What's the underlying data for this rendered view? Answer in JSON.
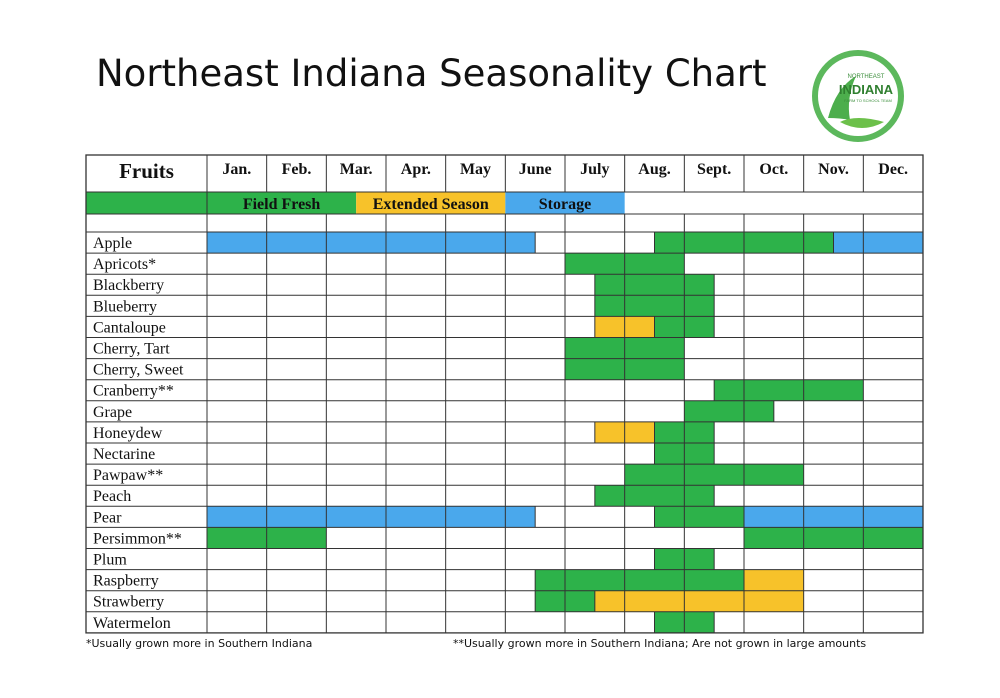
{
  "title": "Northeast Indiana Seasonality Chart",
  "logo": {
    "line1": "NORTHEAST",
    "line2": "INDIANA",
    "line3": "FARM TO SCHOOL TEAM"
  },
  "footnotes": {
    "single": "*Usually grown more in Southern Indiana",
    "double": "**Usually grown more in Southern Indiana; Are not grown in large amounts"
  },
  "colors": {
    "storage": "#4aa8ec",
    "field": "#2db24a",
    "extended": "#f7c22a",
    "grid": "#333333"
  },
  "chart_data": {
    "type": "table",
    "first_header": "Fruits",
    "months": [
      "Jan.",
      "Feb.",
      "Mar.",
      "Apr.",
      "May",
      "June",
      "July",
      "Aug.",
      "Sept.",
      "Oct.",
      "Nov.",
      "Dec."
    ],
    "legend": [
      {
        "label": "Field Fresh",
        "key": "field",
        "start": 0,
        "end": 5
      },
      {
        "label": "Extended Season",
        "key": "extended",
        "start": 5,
        "end": 10
      },
      {
        "label": "Storage",
        "key": "storage",
        "start": 10,
        "end": 14
      }
    ],
    "half_month_unit": "Each month is split into halves; spans use half-month indices 0-24 (0 = start of Jan., 24 = end of Dec.)",
    "fruits": [
      {
        "name": "Apple",
        "spans": [
          {
            "type": "storage",
            "start": 0,
            "end": 11
          },
          {
            "type": "field",
            "start": 15,
            "end": 21
          },
          {
            "type": "storage",
            "start": 21,
            "end": 24
          }
        ]
      },
      {
        "name": "Apricots*",
        "spans": [
          {
            "type": "field",
            "start": 12,
            "end": 16
          }
        ]
      },
      {
        "name": "Blackberry",
        "spans": [
          {
            "type": "field",
            "start": 13,
            "end": 17
          }
        ]
      },
      {
        "name": "Blueberry",
        "spans": [
          {
            "type": "field",
            "start": 13,
            "end": 17
          }
        ]
      },
      {
        "name": "Cantaloupe",
        "spans": [
          {
            "type": "extended",
            "start": 13,
            "end": 15
          },
          {
            "type": "field",
            "start": 15,
            "end": 17
          }
        ]
      },
      {
        "name": "Cherry, Tart",
        "spans": [
          {
            "type": "field",
            "start": 12,
            "end": 16
          }
        ]
      },
      {
        "name": "Cherry, Sweet",
        "spans": [
          {
            "type": "field",
            "start": 12,
            "end": 16
          }
        ]
      },
      {
        "name": "Cranberry**",
        "spans": [
          {
            "type": "field",
            "start": 17,
            "end": 22
          }
        ]
      },
      {
        "name": "Grape",
        "spans": [
          {
            "type": "field",
            "start": 16,
            "end": 19
          }
        ]
      },
      {
        "name": "Honeydew",
        "spans": [
          {
            "type": "extended",
            "start": 13,
            "end": 15
          },
          {
            "type": "field",
            "start": 15,
            "end": 17
          }
        ]
      },
      {
        "name": "Nectarine",
        "spans": [
          {
            "type": "field",
            "start": 15,
            "end": 17
          }
        ]
      },
      {
        "name": "Pawpaw**",
        "spans": [
          {
            "type": "field",
            "start": 14,
            "end": 20
          }
        ]
      },
      {
        "name": "Peach",
        "spans": [
          {
            "type": "field",
            "start": 13,
            "end": 17
          }
        ]
      },
      {
        "name": "Pear",
        "spans": [
          {
            "type": "storage",
            "start": 0,
            "end": 11
          },
          {
            "type": "field",
            "start": 15,
            "end": 18
          },
          {
            "type": "storage",
            "start": 18,
            "end": 24
          }
        ]
      },
      {
        "name": "Persimmon**",
        "spans": [
          {
            "type": "field",
            "start": 0,
            "end": 4
          },
          {
            "type": "field",
            "start": 18,
            "end": 24
          }
        ]
      },
      {
        "name": "Plum",
        "spans": [
          {
            "type": "field",
            "start": 15,
            "end": 17
          }
        ]
      },
      {
        "name": "Raspberry",
        "spans": [
          {
            "type": "field",
            "start": 11,
            "end": 18
          },
          {
            "type": "extended",
            "start": 18,
            "end": 20
          }
        ]
      },
      {
        "name": "Strawberry",
        "spans": [
          {
            "type": "field",
            "start": 11,
            "end": 13
          },
          {
            "type": "extended",
            "start": 13,
            "end": 20
          }
        ]
      },
      {
        "name": "Watermelon",
        "spans": [
          {
            "type": "field",
            "start": 15,
            "end": 17
          }
        ]
      }
    ]
  }
}
